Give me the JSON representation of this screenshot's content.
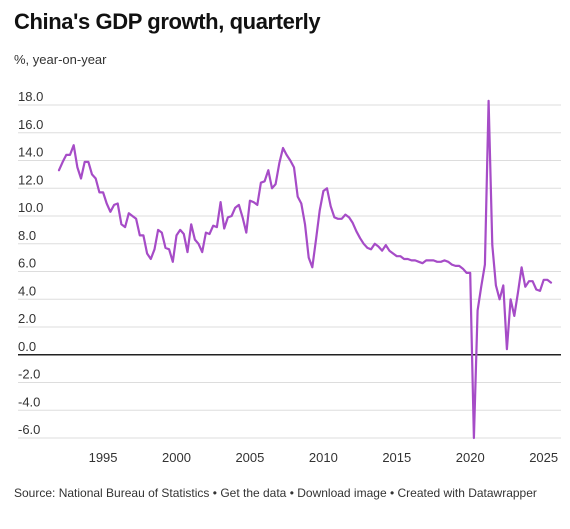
{
  "title": "China's GDP growth, quarterly",
  "subtitle": "%, year-on-year",
  "footer": {
    "source": "Source: National Bureau of Statistics",
    "sep1": " • ",
    "get_data": "Get the data",
    "sep2": " • ",
    "download_image": "Download image",
    "sep3": " • ",
    "created_with": "Created with Datawrapper"
  },
  "chart_data": {
    "type": "line",
    "title": "China's GDP growth, quarterly",
    "ylabel": "%, year-on-year",
    "xlabel": "",
    "ylim": [
      -6.0,
      18.0
    ],
    "xlim": [
      1992,
      2025.5
    ],
    "y_ticks": [
      "18.0",
      "16.0",
      "14.0",
      "12.0",
      "10.0",
      "8.0",
      "6.0",
      "4.0",
      "2.0",
      "0.0",
      "-2.0",
      "-4.0",
      "-6.0"
    ],
    "x_ticks": [
      "1995",
      "2000",
      "2005",
      "2010",
      "2015",
      "2020",
      "2025"
    ],
    "grid": "horizontal",
    "colors": {
      "line": "#a64cc7",
      "zero_line": "#222222",
      "grid": "#dddddd"
    },
    "series": [
      {
        "values": [
          [
            1992.0,
            13.3
          ],
          [
            1992.25,
            13.9
          ],
          [
            1992.5,
            14.4
          ],
          [
            1992.75,
            14.4
          ],
          [
            1993.0,
            15.1
          ],
          [
            1993.25,
            13.5
          ],
          [
            1993.5,
            12.7
          ],
          [
            1993.75,
            13.9
          ],
          [
            1994.0,
            13.9
          ],
          [
            1994.25,
            13.0
          ],
          [
            1994.5,
            12.7
          ],
          [
            1994.75,
            11.7
          ],
          [
            1995.0,
            11.7
          ],
          [
            1995.25,
            10.9
          ],
          [
            1995.5,
            10.3
          ],
          [
            1995.75,
            10.8
          ],
          [
            1996.0,
            10.9
          ],
          [
            1996.25,
            9.4
          ],
          [
            1996.5,
            9.2
          ],
          [
            1996.75,
            10.2
          ],
          [
            1997.0,
            10.0
          ],
          [
            1997.25,
            9.8
          ],
          [
            1997.5,
            8.6
          ],
          [
            1997.75,
            8.6
          ],
          [
            1998.0,
            7.3
          ],
          [
            1998.25,
            6.9
          ],
          [
            1998.5,
            7.6
          ],
          [
            1998.75,
            9.0
          ],
          [
            1999.0,
            8.8
          ],
          [
            1999.25,
            7.7
          ],
          [
            1999.5,
            7.6
          ],
          [
            1999.75,
            6.7
          ],
          [
            2000.0,
            8.6
          ],
          [
            2000.25,
            9.0
          ],
          [
            2000.5,
            8.7
          ],
          [
            2000.75,
            7.4
          ],
          [
            2001.0,
            9.4
          ],
          [
            2001.25,
            8.3
          ],
          [
            2001.5,
            8.0
          ],
          [
            2001.75,
            7.4
          ],
          [
            2002.0,
            8.8
          ],
          [
            2002.25,
            8.7
          ],
          [
            2002.5,
            9.3
          ],
          [
            2002.75,
            9.2
          ],
          [
            2003.0,
            11.0
          ],
          [
            2003.25,
            9.1
          ],
          [
            2003.5,
            9.9
          ],
          [
            2003.75,
            10.0
          ],
          [
            2004.0,
            10.6
          ],
          [
            2004.25,
            10.8
          ],
          [
            2004.5,
            9.9
          ],
          [
            2004.75,
            8.8
          ],
          [
            2005.0,
            11.1
          ],
          [
            2005.25,
            11.0
          ],
          [
            2005.5,
            10.8
          ],
          [
            2005.75,
            12.4
          ],
          [
            2006.0,
            12.5
          ],
          [
            2006.25,
            13.3
          ],
          [
            2006.5,
            12.0
          ],
          [
            2006.75,
            12.3
          ],
          [
            2007.0,
            13.8
          ],
          [
            2007.25,
            14.9
          ],
          [
            2007.5,
            14.4
          ],
          [
            2007.75,
            14.0
          ],
          [
            2008.0,
            13.5
          ],
          [
            2008.25,
            11.4
          ],
          [
            2008.5,
            10.9
          ],
          [
            2008.75,
            9.4
          ],
          [
            2009.0,
            7.0
          ],
          [
            2009.25,
            6.3
          ],
          [
            2009.5,
            8.3
          ],
          [
            2009.75,
            10.4
          ],
          [
            2010.0,
            11.8
          ],
          [
            2010.25,
            12.0
          ],
          [
            2010.5,
            10.7
          ],
          [
            2010.75,
            9.9
          ],
          [
            2011.0,
            9.8
          ],
          [
            2011.25,
            9.8
          ],
          [
            2011.5,
            10.1
          ],
          [
            2011.75,
            9.9
          ],
          [
            2012.0,
            9.5
          ],
          [
            2012.25,
            8.9
          ],
          [
            2012.5,
            8.4
          ],
          [
            2012.75,
            8.0
          ],
          [
            2013.0,
            7.7
          ],
          [
            2013.25,
            7.6
          ],
          [
            2013.5,
            8.0
          ],
          [
            2013.75,
            7.8
          ],
          [
            2014.0,
            7.5
          ],
          [
            2014.25,
            7.9
          ],
          [
            2014.5,
            7.5
          ],
          [
            2014.75,
            7.3
          ],
          [
            2015.0,
            7.1
          ],
          [
            2015.25,
            7.1
          ],
          [
            2015.5,
            6.9
          ],
          [
            2015.75,
            6.9
          ],
          [
            2016.0,
            6.8
          ],
          [
            2016.25,
            6.8
          ],
          [
            2016.5,
            6.7
          ],
          [
            2016.75,
            6.6
          ],
          [
            2017.0,
            6.8
          ],
          [
            2017.25,
            6.8
          ],
          [
            2017.5,
            6.8
          ],
          [
            2017.75,
            6.7
          ],
          [
            2018.0,
            6.7
          ],
          [
            2018.25,
            6.8
          ],
          [
            2018.5,
            6.7
          ],
          [
            2018.75,
            6.5
          ],
          [
            2019.0,
            6.4
          ],
          [
            2019.25,
            6.4
          ],
          [
            2019.5,
            6.2
          ],
          [
            2019.75,
            5.9
          ],
          [
            2020.0,
            5.9
          ],
          [
            2020.25,
            -6.0
          ],
          [
            2020.5,
            3.2
          ],
          [
            2020.75,
            4.9
          ],
          [
            2021.0,
            6.5
          ],
          [
            2021.25,
            18.3
          ],
          [
            2021.5,
            7.9
          ],
          [
            2021.75,
            5.0
          ],
          [
            2022.0,
            4.0
          ],
          [
            2022.25,
            5.0
          ],
          [
            2022.5,
            0.4
          ],
          [
            2022.75,
            4.0
          ],
          [
            2023.0,
            2.8
          ],
          [
            2023.25,
            4.5
          ],
          [
            2023.5,
            6.3
          ],
          [
            2023.75,
            4.9
          ],
          [
            2024.0,
            5.3
          ],
          [
            2024.25,
            5.3
          ],
          [
            2024.5,
            4.7
          ],
          [
            2024.75,
            4.6
          ],
          [
            2025.0,
            5.4
          ],
          [
            2025.25,
            5.4
          ],
          [
            2025.5,
            5.2
          ]
        ]
      }
    ]
  }
}
